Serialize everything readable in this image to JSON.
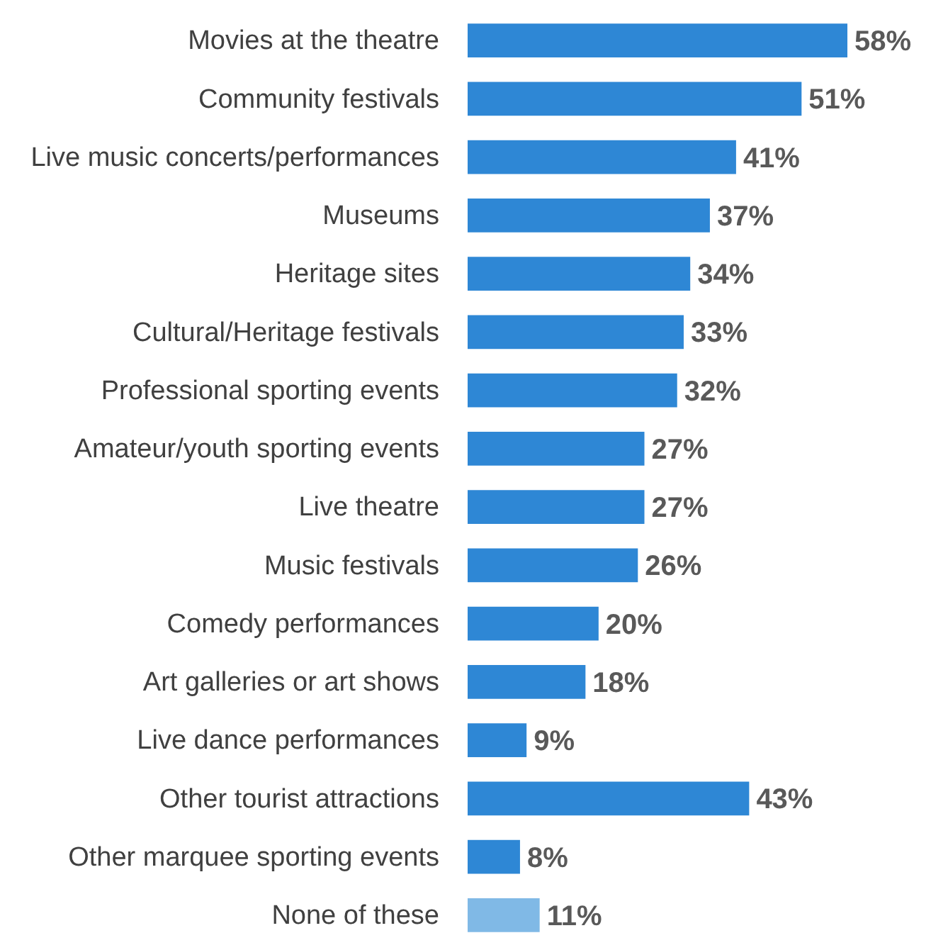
{
  "chart_data": {
    "type": "bar",
    "orientation": "horizontal",
    "categories": [
      "Movies at the theatre",
      "Community festivals",
      "Live music concerts/performances",
      "Museums",
      "Heritage sites",
      "Cultural/Heritage festivals",
      "Professional sporting events",
      "Amateur/youth sporting events",
      "Live theatre",
      "Music festivals",
      "Comedy performances",
      "Art galleries or art shows",
      "Live dance performances",
      "Other tourist attractions",
      "Other marquee sporting events",
      "None of these"
    ],
    "values": [
      58,
      51,
      41,
      37,
      34,
      33,
      32,
      27,
      27,
      26,
      20,
      18,
      9,
      43,
      8,
      11
    ],
    "value_labels": [
      "58%",
      "51%",
      "41%",
      "37%",
      "34%",
      "33%",
      "32%",
      "27%",
      "27%",
      "26%",
      "20%",
      "18%",
      "9%",
      "43%",
      "8%",
      "11%"
    ],
    "colors": [
      "#2e87d5",
      "#2e87d5",
      "#2e87d5",
      "#2e87d5",
      "#2e87d5",
      "#2e87d5",
      "#2e87d5",
      "#2e87d5",
      "#2e87d5",
      "#2e87d5",
      "#2e87d5",
      "#2e87d5",
      "#2e87d5",
      "#2e87d5",
      "#2e87d5",
      "#80b9e6"
    ]
  }
}
